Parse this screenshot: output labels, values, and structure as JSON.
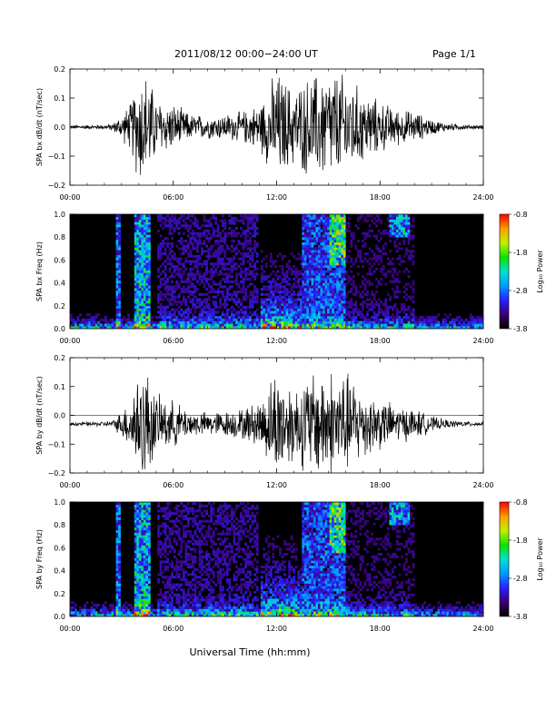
{
  "header": {
    "title": "2011/08/12  00:00−24:00 UT",
    "page": "Page 1/1"
  },
  "footer": {
    "xlabel": "Universal Time (hh:mm)"
  },
  "chart_data": [
    {
      "type": "line",
      "ylabel": "SPA bx dB/dt (nT/sec)",
      "xlim": [
        0,
        24
      ],
      "ylim": [
        -0.2,
        0.2
      ],
      "xticks": [
        "00:00",
        "06:00",
        "12:00",
        "18:00",
        "24:00"
      ],
      "yticks": [
        "−0.2",
        "−0.1",
        "0.0",
        "0.1",
        "0.2"
      ],
      "series": [
        {
          "x": [
            0,
            1,
            2,
            2.5,
            3,
            3.5,
            4,
            4.3,
            4.6,
            5,
            6,
            7,
            8,
            9,
            10,
            11,
            11.5,
            12,
            12.5,
            13,
            14,
            15,
            16,
            17,
            18,
            19,
            20,
            21,
            22,
            23,
            24
          ],
          "amplitude": [
            0.008,
            0.008,
            0.01,
            0.015,
            0.05,
            0.09,
            0.22,
            0.22,
            0.2,
            0.11,
            0.09,
            0.05,
            0.045,
            0.05,
            0.06,
            0.09,
            0.15,
            0.22,
            0.18,
            0.15,
            0.2,
            0.22,
            0.2,
            0.14,
            0.1,
            0.07,
            0.06,
            0.03,
            0.015,
            0.01,
            0.008
          ],
          "offset": 0.0
        }
      ]
    },
    {
      "type": "heatmap",
      "ylabel": "SPA bx Freq (Hz)",
      "xlim": [
        0,
        24
      ],
      "ylim": [
        0,
        1.0
      ],
      "xticks": [
        "00:00",
        "06:00",
        "12:00",
        "18:00",
        "24:00"
      ],
      "yticks": [
        "0.0",
        "0.2",
        "0.4",
        "0.6",
        "0.8",
        "1.0"
      ],
      "colorbar": {
        "label": "Log₁₀ Power",
        "range": [
          -3.8,
          -0.8
        ],
        "ticks": [
          "-0.8",
          "-1.8",
          "-2.8",
          "-3.8"
        ]
      }
    },
    {
      "type": "line",
      "ylabel": "SPA by dB/dt (nT/sec)",
      "xlim": [
        0,
        24
      ],
      "ylim": [
        -0.2,
        0.2
      ],
      "xticks": [
        "00:00",
        "06:00",
        "12:00",
        "18:00",
        "24:00"
      ],
      "yticks": [
        "−0.2",
        "−0.1",
        "0.0",
        "0.1",
        "0.2"
      ],
      "series": [
        {
          "x": [
            0,
            1,
            2,
            2.5,
            3,
            3.5,
            4,
            4.3,
            4.6,
            5,
            6,
            7,
            8,
            9,
            10,
            11,
            11.5,
            12,
            12.5,
            13,
            14,
            15,
            16,
            17,
            18,
            19,
            20,
            21,
            22,
            23,
            24
          ],
          "amplitude": [
            0.008,
            0.008,
            0.01,
            0.015,
            0.05,
            0.1,
            0.22,
            0.22,
            0.2,
            0.11,
            0.09,
            0.05,
            0.045,
            0.05,
            0.06,
            0.09,
            0.15,
            0.22,
            0.18,
            0.15,
            0.2,
            0.22,
            0.2,
            0.14,
            0.1,
            0.07,
            0.06,
            0.03,
            0.015,
            0.01,
            0.008
          ],
          "offset": -0.03
        }
      ]
    },
    {
      "type": "heatmap",
      "ylabel": "SPA by Freq (Hz)",
      "xlim": [
        0,
        24
      ],
      "ylim": [
        0,
        1.0
      ],
      "xticks": [
        "00:00",
        "06:00",
        "12:00",
        "18:00",
        "24:00"
      ],
      "yticks": [
        "0.0",
        "0.2",
        "0.4",
        "0.6",
        "0.8",
        "1.0"
      ],
      "colorbar": {
        "label": "Log₁₀ Power",
        "range": [
          -3.8,
          -0.8
        ],
        "ticks": [
          "-0.8",
          "-1.8",
          "-2.8",
          "-3.8"
        ]
      }
    }
  ]
}
